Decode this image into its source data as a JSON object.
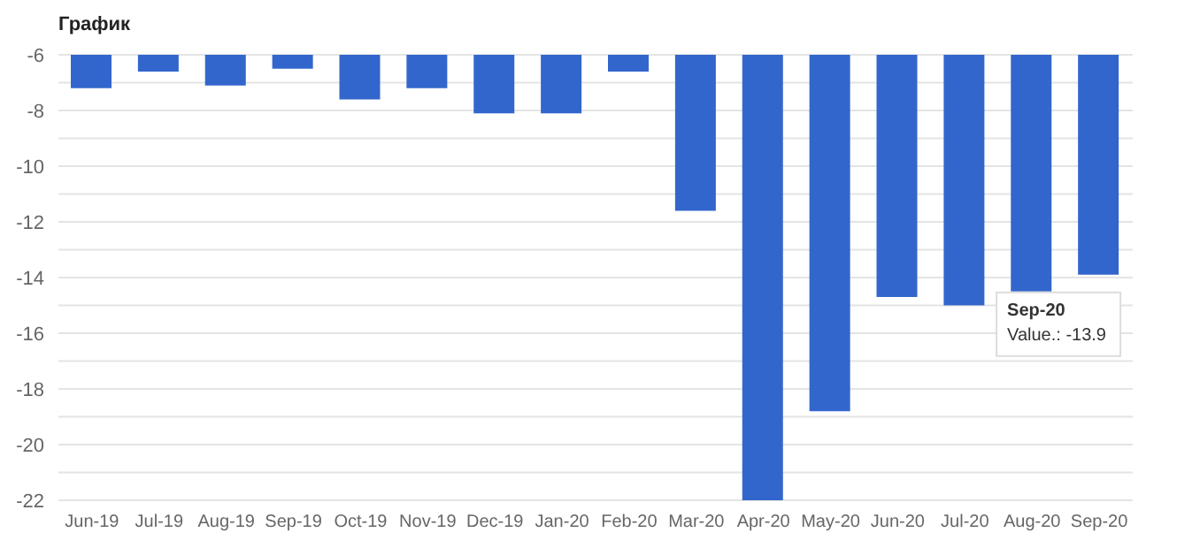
{
  "chart_data": {
    "type": "bar",
    "title": "График",
    "categories": [
      "Jun-19",
      "Jul-19",
      "Aug-19",
      "Sep-19",
      "Oct-19",
      "Nov-19",
      "Dec-19",
      "Jan-20",
      "Feb-20",
      "Mar-20",
      "Apr-20",
      "May-20",
      "Jun-20",
      "Jul-20",
      "Aug-20",
      "Sep-20"
    ],
    "values": [
      -7.2,
      -6.6,
      -7.1,
      -6.5,
      -7.6,
      -7.2,
      -8.1,
      -8.1,
      -6.6,
      -11.6,
      -22,
      -18.8,
      -14.7,
      -15.0,
      -14.5,
      -13.9
    ],
    "color": "#3366cc",
    "ylim": [
      -22,
      -6
    ],
    "yticks": [
      -6,
      {
        "value": -7,
        "label": null
      },
      -8,
      {
        "value": -9,
        "label": null
      },
      -10,
      {
        "value": -11,
        "label": null
      },
      -12,
      {
        "value": -13,
        "label": null
      },
      -14,
      {
        "value": -15,
        "label": null
      },
      -16,
      {
        "value": -17,
        "label": null
      },
      -18,
      {
        "value": -19,
        "label": null
      },
      -20,
      {
        "value": -21,
        "label": null
      },
      -22
    ],
    "grid": "y",
    "legend": false,
    "annotations": [
      {
        "text": "Sep-20",
        "x": "Sep-20",
        "y": -13.9
      },
      {
        "text": "Value.: -13.9",
        "x": "Sep-20",
        "y": -13.9
      }
    ]
  }
}
